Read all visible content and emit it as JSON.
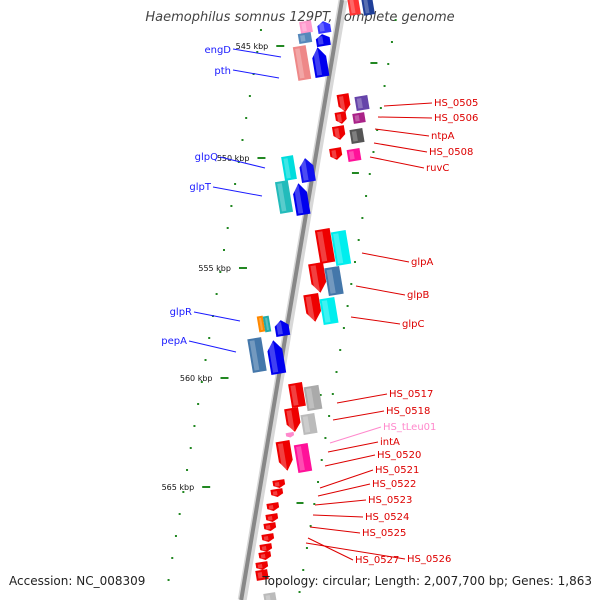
{
  "title": "Haemophilus somnus 129PT, complete genome",
  "footer": {
    "accession": "Accession: NC_008309",
    "topology": "Topology: circular; Length: 2,007,700 bp; Genes: 1,863"
  },
  "colors": {
    "forward_label": "#1a1aff",
    "reverse_label": "#dd0000",
    "trna_label": "#ff88cc",
    "backbone": "#888888",
    "tick": "#228822"
  },
  "scale_labels": [
    "545 kbp",
    "550 kbp",
    "555 kbp",
    "560 kbp",
    "565 kbp"
  ],
  "left_genes": [
    {
      "name": "engD"
    },
    {
      "name": "pth"
    },
    {
      "name": "glpQ"
    },
    {
      "name": "glpT"
    },
    {
      "name": "glpR"
    },
    {
      "name": "pepA"
    }
  ],
  "right_genes": [
    {
      "name": "HS_0505"
    },
    {
      "name": "HS_0506"
    },
    {
      "name": "ntpA"
    },
    {
      "name": "HS_0508"
    },
    {
      "name": "ruvC"
    },
    {
      "name": "glpA"
    },
    {
      "name": "glpB"
    },
    {
      "name": "glpC"
    },
    {
      "name": "HS_0517"
    },
    {
      "name": "HS_0518"
    },
    {
      "name": "HS_tLeu01"
    },
    {
      "name": "intA"
    },
    {
      "name": "HS_0520"
    },
    {
      "name": "HS_0521"
    },
    {
      "name": "HS_0522"
    },
    {
      "name": "HS_0523"
    },
    {
      "name": "HS_0524"
    },
    {
      "name": "HS_0525"
    },
    {
      "name": "HS_0527"
    },
    {
      "name": "HS_0526"
    }
  ]
}
